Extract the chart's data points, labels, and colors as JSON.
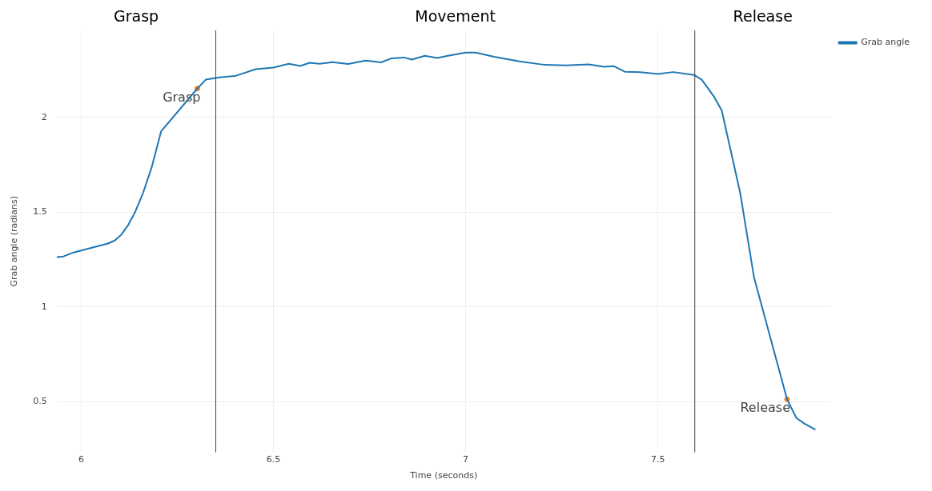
{
  "chart_data": {
    "type": "line",
    "xlabel": "Time (seconds)",
    "ylabel": "Grab angle (radians)",
    "xlim": [
      5.936,
      7.95
    ],
    "xticks": [
      6,
      6.5,
      7,
      7.5
    ],
    "ylim": [
      0.233,
      2.46
    ],
    "yticks": [
      0.5,
      1,
      1.5,
      2
    ],
    "grid": true,
    "legend": "top right",
    "marker": "none",
    "line_style": "solid",
    "series": [
      {
        "name": "Grab angle",
        "color": "#1f77b4",
        "x": [
          5.936,
          5.954,
          5.98,
          6.02,
          6.07,
          6.088,
          6.104,
          6.122,
          6.14,
          6.16,
          6.184,
          6.208,
          6.302,
          6.324,
          6.36,
          6.4,
          6.454,
          6.5,
          6.54,
          6.57,
          6.594,
          6.62,
          6.654,
          6.694,
          6.74,
          6.78,
          6.806,
          6.84,
          6.86,
          6.894,
          6.926,
          6.954,
          7.0,
          7.026,
          7.074,
          7.14,
          7.206,
          7.26,
          7.32,
          7.36,
          7.386,
          7.414,
          7.454,
          7.5,
          7.54,
          7.594,
          7.614,
          7.646,
          7.666,
          7.714,
          7.75,
          7.836,
          7.86,
          7.88,
          7.91
        ],
        "values": [
          1.263,
          1.267,
          1.288,
          1.309,
          1.335,
          1.352,
          1.381,
          1.432,
          1.5,
          1.597,
          1.742,
          1.928,
          2.153,
          2.2,
          2.212,
          2.219,
          2.255,
          2.264,
          2.284,
          2.272,
          2.289,
          2.284,
          2.292,
          2.283,
          2.301,
          2.291,
          2.312,
          2.317,
          2.306,
          2.326,
          2.314,
          2.326,
          2.343,
          2.343,
          2.321,
          2.296,
          2.278,
          2.275,
          2.281,
          2.268,
          2.271,
          2.242,
          2.239,
          2.23,
          2.24,
          2.225,
          2.2,
          2.11,
          2.038,
          1.603,
          1.157,
          0.513,
          0.415,
          0.386,
          0.352
        ]
      },
      {
        "type": "scatter",
        "color": "#ff7f0e",
        "marker": "circle",
        "x": [
          6.302,
          7.836
        ],
        "values": [
          2.153,
          0.513
        ]
      }
    ],
    "ref_lines": [
      {
        "axis": "x",
        "value": 6.35,
        "color": "#444444"
      },
      {
        "axis": "x",
        "value": 7.596,
        "color": "#444444"
      }
    ],
    "annotations": [
      "Grasp",
      "Movement",
      "Release",
      {
        "text": "Grasp",
        "x": 6.302,
        "y": 2.153
      },
      {
        "text": "Release",
        "x": 7.836,
        "y": 0.513
      }
    ]
  }
}
